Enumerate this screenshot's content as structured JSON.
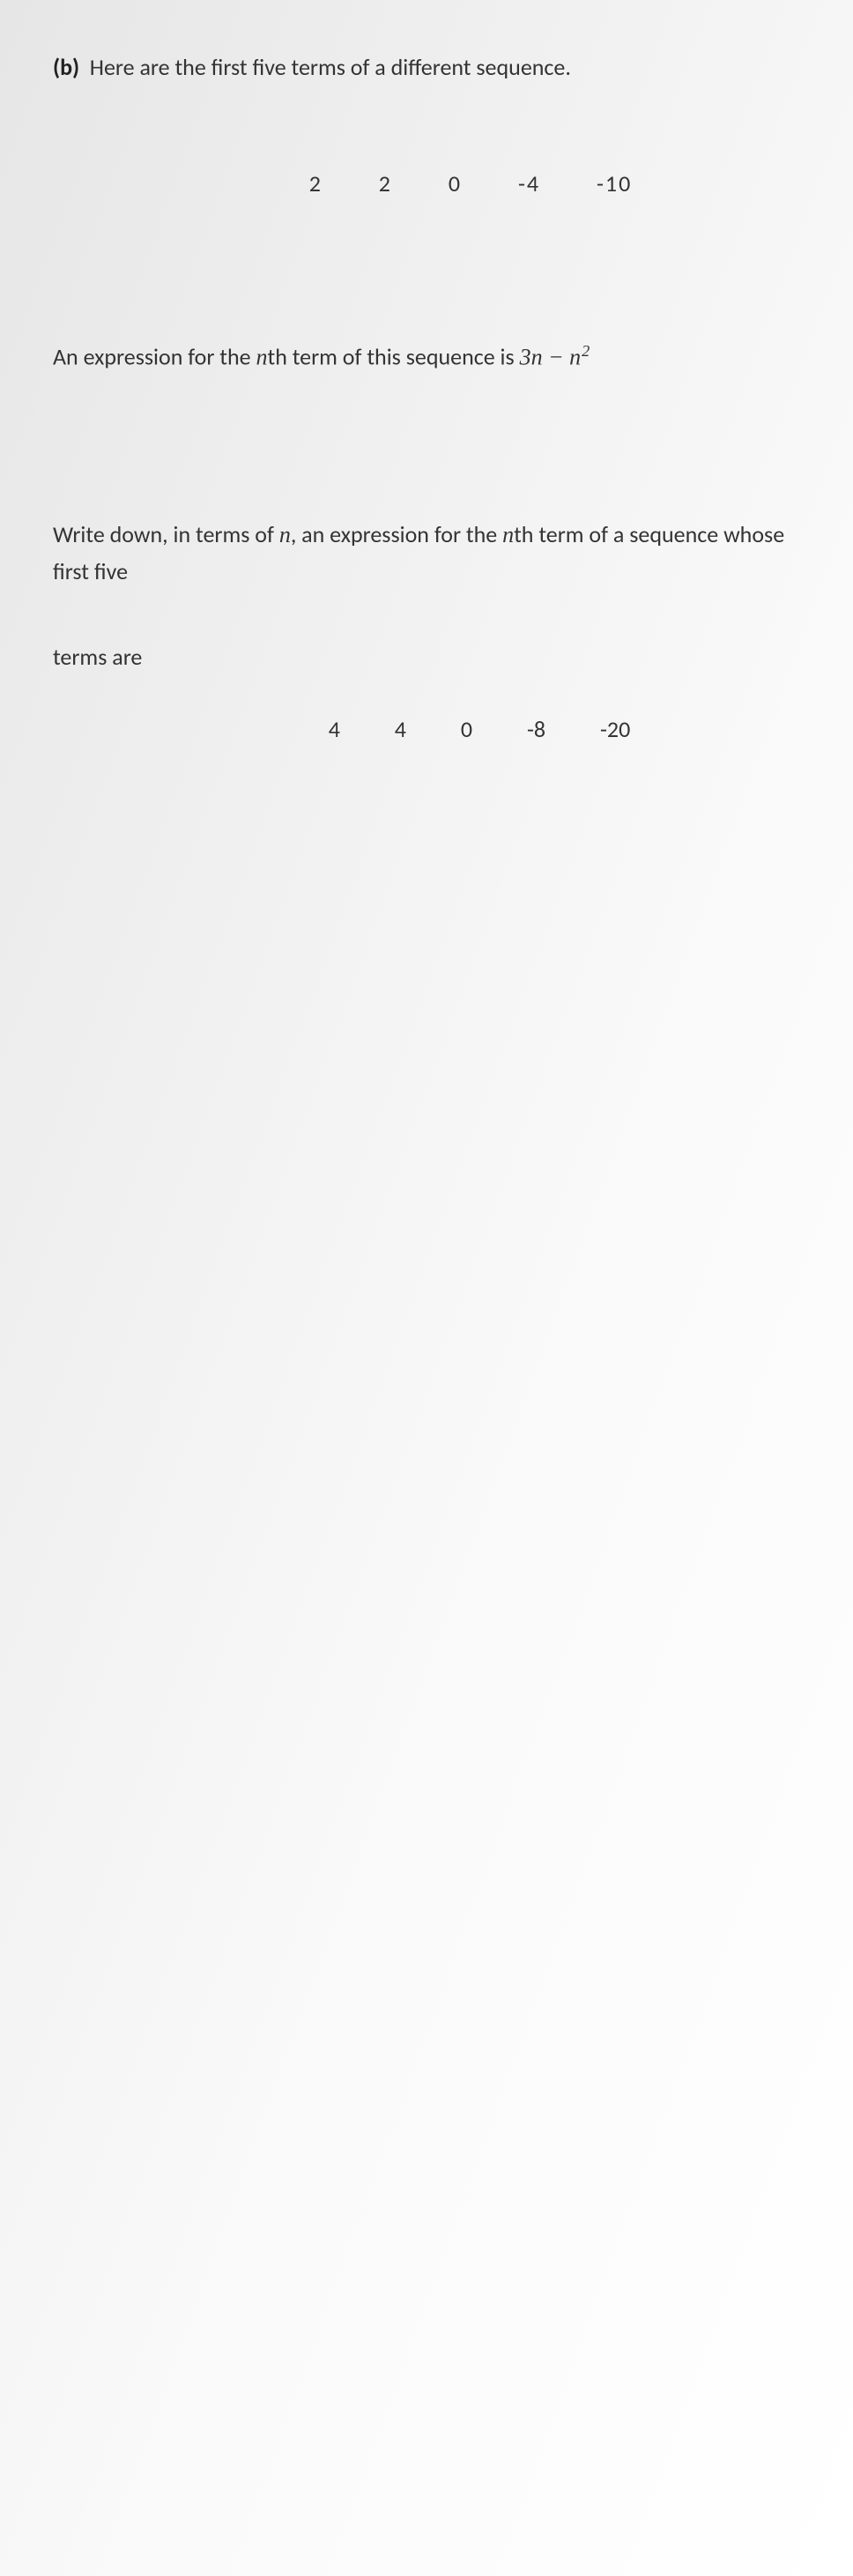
{
  "question": {
    "label": "(b)",
    "intro": "Here are the first five terms of a different sequence."
  },
  "sequence1": {
    "values": [
      "2",
      "2",
      "0",
      "-4",
      "-10"
    ]
  },
  "statement1": {
    "prefix": "An expression for the ",
    "nth_var": "n",
    "mid1": "th term of this sequence is ",
    "expr_part1": "3n",
    "expr_minus": " − ",
    "expr_part2_base": "n",
    "expr_part2_exp": "2"
  },
  "statement2": {
    "prefix": "Write down, in terms of ",
    "n_var": "n",
    "mid": ", an expression for the ",
    "nth_var": "n",
    "suffix": "th term of a sequence whose first five"
  },
  "terms_are_label": "terms are",
  "sequence2": {
    "values": [
      "4",
      "4",
      "0",
      "-8",
      "-20"
    ]
  },
  "colors": {
    "text": "#333333",
    "background": "#ffffff"
  },
  "typography": {
    "body_fontsize": 26,
    "font_family": "Calibri"
  }
}
